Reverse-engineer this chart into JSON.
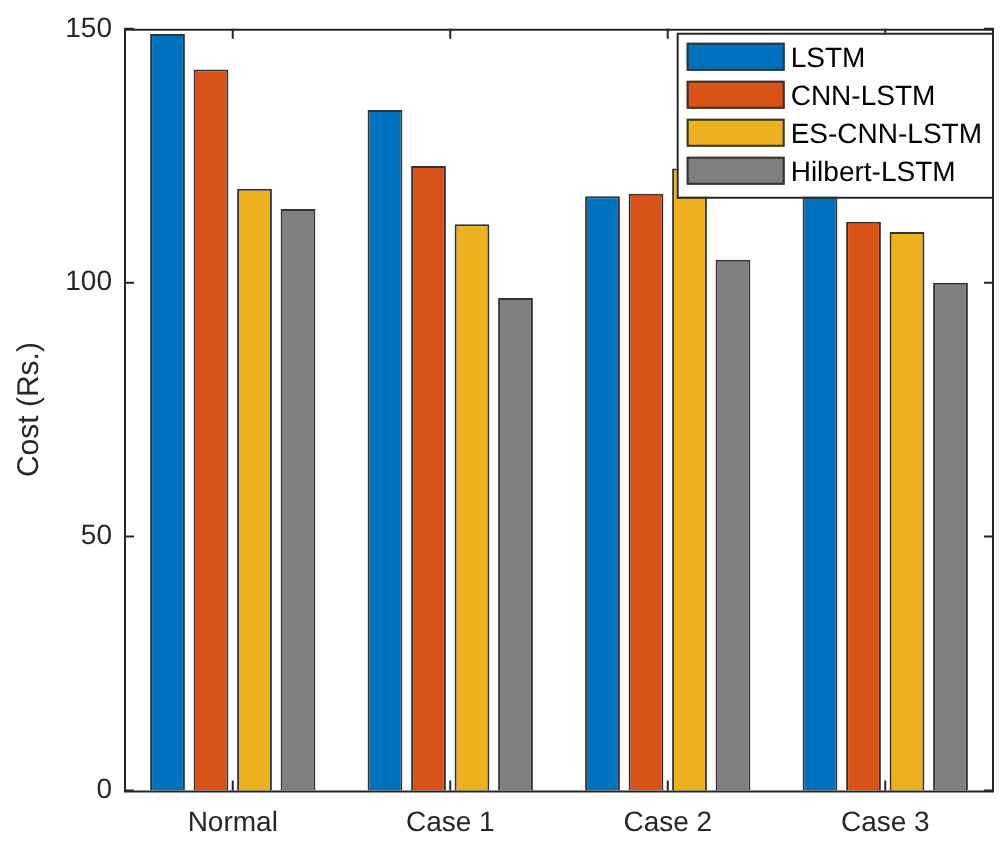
{
  "chart_data": {
    "type": "bar",
    "ylabel": "Cost (Rs.)",
    "categories": [
      "Normal",
      "Case 1",
      "Case 2",
      "Case 3"
    ],
    "series": [
      {
        "name": "LSTM",
        "color": "#0072bd",
        "values": [
          149,
          134,
          117,
          117
        ]
      },
      {
        "name": "CNN-LSTM",
        "color": "#d95319",
        "values": [
          142,
          123,
          117.5,
          112
        ]
      },
      {
        "name": "ES-CNN-LSTM",
        "color": "#edb120",
        "values": [
          118.5,
          111.5,
          122.5,
          110
        ]
      },
      {
        "name": "Hilbert-LSTM",
        "color": "#7f7f7f",
        "values": [
          114.5,
          97,
          104.5,
          100
        ]
      }
    ],
    "ylim": [
      0,
      150
    ],
    "yticks": [
      0,
      50,
      100,
      150
    ],
    "grid": false,
    "legend": "top right"
  }
}
